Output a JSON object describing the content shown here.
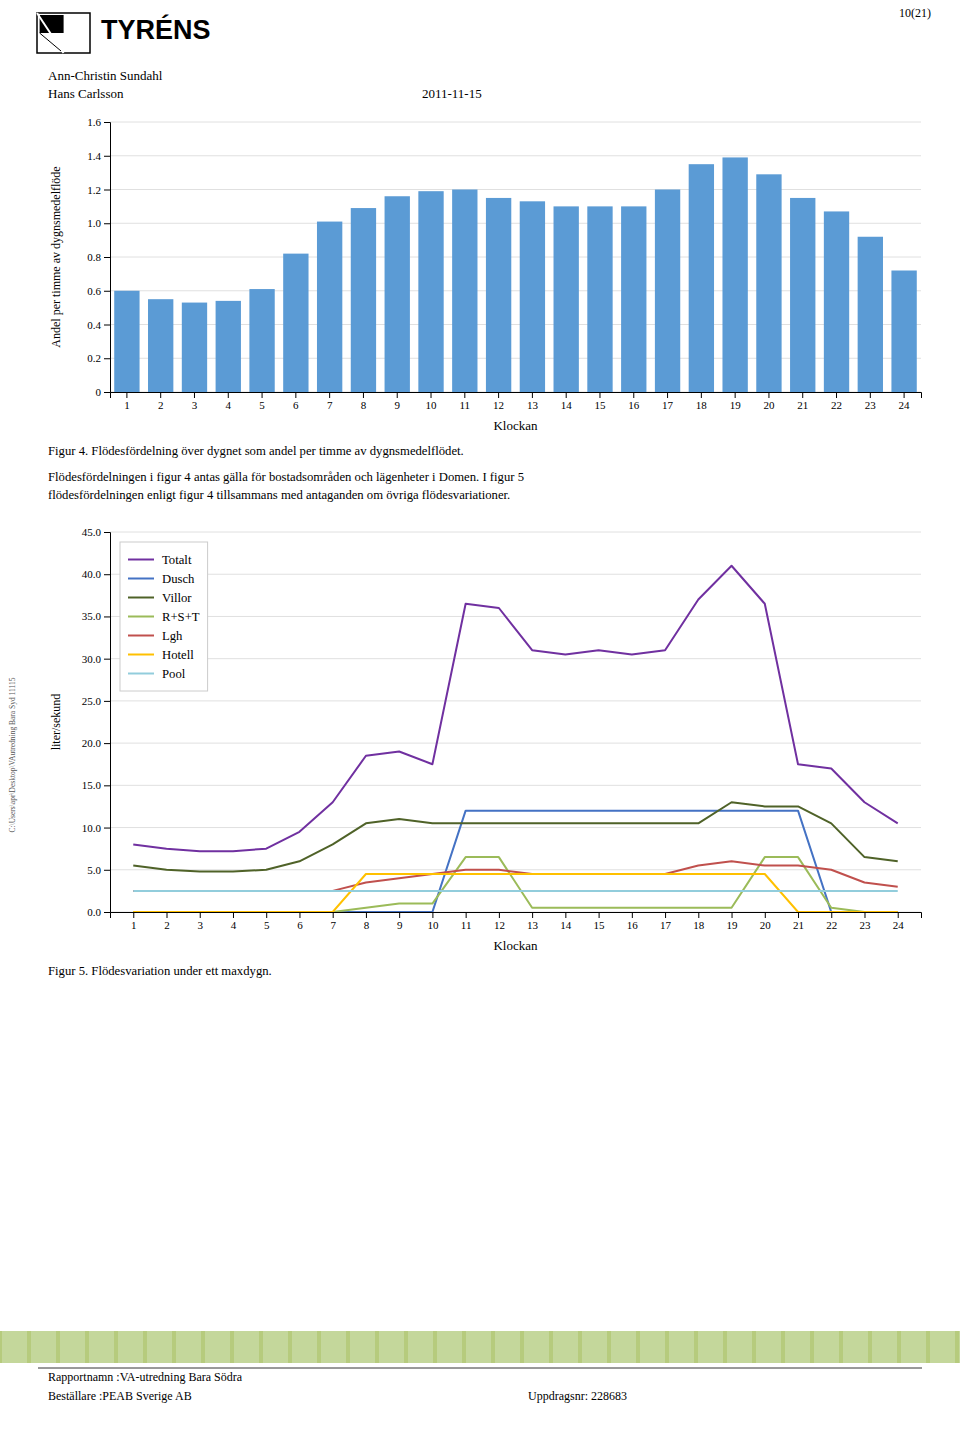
{
  "page_number": "10(21)",
  "brand": "TYRÉNS",
  "authors": [
    "Ann-Christin Sundahl",
    "Hans Carlsson"
  ],
  "date": "2011-11-15",
  "paragraph": [
    "Flödesfördelningen i figur 4 antas gälla för bostadsområden och lägenheter i Domen. I figur 5",
    "flödesfördelningen enligt figur 4 tillsammans med antaganden om övriga flödesvariationer."
  ],
  "sidebar": "C:\\Users\\apr\\Desktop\\VAutredning Bara Syd 11115",
  "footer": [
    "Rapportnamn :VA-utredning Bara Södra",
    "Beställare :PEAB Sverige AB",
    "Uppdragsnr: 228683"
  ],
  "chart_data": [
    {
      "type": "bar",
      "title": "Figur 4. Flödesfördelning över dygnet som andel per timme av dygnsmedelflödet.",
      "x_label": "Klockan",
      "y_label": "Andel per timme av dygnsmedelflöde",
      "categories": [
        1,
        2,
        3,
        4,
        5,
        6,
        7,
        8,
        9,
        10,
        11,
        12,
        13,
        14,
        15,
        16,
        17,
        18,
        19,
        20,
        21,
        22,
        23,
        24
      ],
      "values": [
        0.6,
        0.55,
        0.53,
        0.54,
        0.61,
        0.82,
        1.01,
        1.09,
        1.16,
        1.19,
        1.2,
        1.15,
        1.13,
        1.1,
        1.1,
        1.1,
        1.2,
        1.35,
        1.39,
        1.29,
        1.15,
        1.07,
        0.92,
        0.72
      ],
      "color": "#5B9BD5",
      "ylim": [
        0,
        1.6
      ],
      "yticks": [
        0,
        0.2,
        0.4,
        0.6,
        0.8,
        {
          "value": 1.0,
          "label": "1.0"
        },
        1.2,
        1.4,
        1.6
      ],
      "grid": true
    },
    {
      "type": "line",
      "title": "Figur 5. Flödesvariation under ett maxdygn.",
      "x_label": "Klockan",
      "y_label": "liter/sekund",
      "x": [
        1,
        2,
        3,
        4,
        5,
        6,
        7,
        8,
        9,
        10,
        11,
        12,
        13,
        14,
        15,
        16,
        17,
        18,
        19,
        20,
        21,
        22,
        23,
        24
      ],
      "xlim": [
        0.3,
        24.7
      ],
      "xticks": [
        1,
        2,
        3,
        4,
        5,
        6,
        7,
        8,
        9,
        10,
        11,
        12,
        13,
        14,
        15,
        16,
        17,
        18,
        19,
        20,
        21,
        22,
        23,
        24
      ],
      "ylim": [
        0,
        45
      ],
      "yticks": [
        {
          "value": 0.0,
          "label": "0.0"
        },
        {
          "value": 5.0,
          "label": "5.0"
        },
        {
          "value": 10.0,
          "label": "10.0"
        },
        {
          "value": 15.0,
          "label": "15.0"
        },
        {
          "value": 20.0,
          "label": "20.0"
        },
        {
          "value": 25.0,
          "label": "25.0"
        },
        {
          "value": 30.0,
          "label": "30.0"
        },
        {
          "value": 35.0,
          "label": "35.0"
        },
        {
          "value": 40.0,
          "label": "40.0"
        },
        {
          "value": 45.0,
          "label": "45.0"
        }
      ],
      "grid": true,
      "legend": "upper left",
      "series": [
        {
          "name": "Totalt",
          "color": "#7030A0",
          "values": [
            8.0,
            7.5,
            7.2,
            7.2,
            7.5,
            9.5,
            13.0,
            18.5,
            19.0,
            17.5,
            36.5,
            36.0,
            31.0,
            30.5,
            31.0,
            30.5,
            31.0,
            37.0,
            41.0,
            36.5,
            17.5,
            17.0,
            13.0,
            10.5
          ]
        },
        {
          "name": "Dusch",
          "color": "#4472C4",
          "values": [
            0.0,
            0.0,
            0.0,
            0.0,
            0.0,
            0.0,
            0.0,
            0.0,
            0.0,
            0.0,
            12.0,
            12.0,
            12.0,
            12.0,
            12.0,
            12.0,
            12.0,
            12.0,
            12.0,
            12.0,
            12.0,
            0.0,
            0.0,
            0.0
          ]
        },
        {
          "name": "Villor",
          "color": "#4F6228",
          "values": [
            5.5,
            5.0,
            4.8,
            4.8,
            5.0,
            6.0,
            8.0,
            10.5,
            11.0,
            10.5,
            10.5,
            10.5,
            10.5,
            10.5,
            10.5,
            10.5,
            10.5,
            10.5,
            13.0,
            12.5,
            12.5,
            10.5,
            6.5,
            6.0
          ]
        },
        {
          "name": "R+S+T",
          "color": "#9BBB59",
          "values": [
            0.0,
            0.0,
            0.0,
            0.0,
            0.0,
            0.0,
            0.0,
            0.5,
            1.0,
            1.0,
            6.5,
            6.5,
            0.5,
            0.5,
            0.5,
            0.5,
            0.5,
            0.5,
            0.5,
            6.5,
            6.5,
            0.5,
            0.0,
            0.0
          ]
        },
        {
          "name": "Lgh",
          "color": "#C0504D",
          "values": [
            2.5,
            2.5,
            2.5,
            2.5,
            2.5,
            2.5,
            2.5,
            3.5,
            4.0,
            4.5,
            5.0,
            5.0,
            4.5,
            4.5,
            4.5,
            4.5,
            4.5,
            5.5,
            6.0,
            5.5,
            5.5,
            5.0,
            3.5,
            3.0
          ]
        },
        {
          "name": "Hotell",
          "color": "#FFC000",
          "values": [
            0.0,
            0.0,
            0.0,
            0.0,
            0.0,
            0.0,
            0.0,
            4.5,
            4.5,
            4.5,
            4.5,
            4.5,
            4.5,
            4.5,
            4.5,
            4.5,
            4.5,
            4.5,
            4.5,
            4.5,
            0.0,
            0.0,
            0.0,
            0.0
          ]
        },
        {
          "name": "Pool",
          "color": "#92CDDC",
          "values": [
            2.5,
            2.5,
            2.5,
            2.5,
            2.5,
            2.5,
            2.5,
            2.5,
            2.5,
            2.5,
            2.5,
            2.5,
            2.5,
            2.5,
            2.5,
            2.5,
            2.5,
            2.5,
            2.5,
            2.5,
            2.5,
            2.5,
            2.5,
            2.5
          ]
        }
      ]
    }
  ]
}
